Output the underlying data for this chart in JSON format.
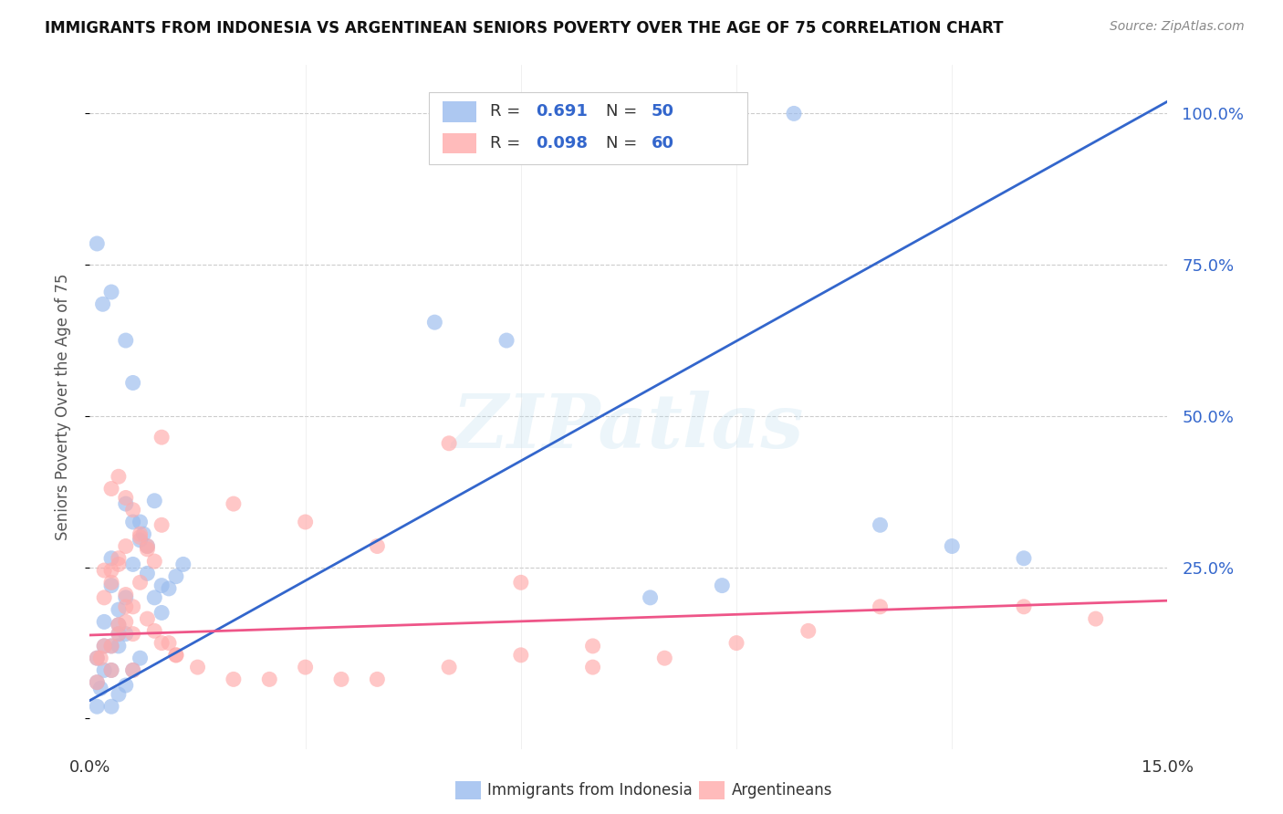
{
  "title": "IMMIGRANTS FROM INDONESIA VS ARGENTINEAN SENIORS POVERTY OVER THE AGE OF 75 CORRELATION CHART",
  "source": "Source: ZipAtlas.com",
  "ylabel": "Seniors Poverty Over the Age of 75",
  "right_ytick_labels": [
    "100.0%",
    "75.0%",
    "50.0%",
    "25.0%"
  ],
  "right_ytick_values": [
    1.0,
    0.75,
    0.5,
    0.25
  ],
  "xmin": 0.0,
  "xmax": 0.15,
  "ymin": -0.05,
  "ymax": 1.08,
  "blue_R": "0.691",
  "blue_N": "50",
  "pink_R": "0.098",
  "pink_N": "60",
  "blue_scatter_color": "#99BBEE",
  "pink_scatter_color": "#FFAAAA",
  "blue_line_color": "#3366CC",
  "pink_line_color": "#EE5588",
  "legend_label_blue": "Immigrants from Indonesia",
  "legend_label_pink": "Argentineans",
  "watermark": "ZIPatlas",
  "title_color": "#111111",
  "source_color": "#888888",
  "right_yaxis_color": "#3366CC",
  "blue_scatter_x": [
    0.001,
    0.002,
    0.003,
    0.001,
    0.004,
    0.005,
    0.003,
    0.006,
    0.0015,
    0.004,
    0.007,
    0.003,
    0.008,
    0.005,
    0.006,
    0.009,
    0.004,
    0.01,
    0.0018,
    0.003,
    0.001,
    0.005,
    0.006,
    0.007,
    0.0075,
    0.004,
    0.003,
    0.002,
    0.001,
    0.009,
    0.01,
    0.011,
    0.012,
    0.013,
    0.007,
    0.006,
    0.005,
    0.004,
    0.003,
    0.008,
    0.048,
    0.058,
    0.078,
    0.088,
    0.098,
    0.11,
    0.12,
    0.13,
    0.002,
    0.005
  ],
  "blue_scatter_y": [
    0.1,
    0.08,
    0.12,
    0.06,
    0.155,
    0.2,
    0.22,
    0.255,
    0.05,
    0.18,
    0.295,
    0.265,
    0.285,
    0.355,
    0.325,
    0.36,
    0.14,
    0.22,
    0.685,
    0.705,
    0.785,
    0.625,
    0.555,
    0.325,
    0.305,
    0.12,
    0.08,
    0.16,
    0.02,
    0.2,
    0.175,
    0.215,
    0.235,
    0.255,
    0.1,
    0.08,
    0.055,
    0.04,
    0.02,
    0.24,
    0.655,
    0.625,
    0.2,
    0.22,
    1.0,
    0.32,
    0.285,
    0.265,
    0.12,
    0.14
  ],
  "pink_scatter_x": [
    0.001,
    0.002,
    0.003,
    0.004,
    0.005,
    0.006,
    0.002,
    0.003,
    0.004,
    0.005,
    0.001,
    0.0015,
    0.003,
    0.004,
    0.005,
    0.006,
    0.007,
    0.008,
    0.009,
    0.01,
    0.02,
    0.03,
    0.04,
    0.05,
    0.06,
    0.07,
    0.08,
    0.09,
    0.1,
    0.11,
    0.003,
    0.004,
    0.005,
    0.006,
    0.007,
    0.008,
    0.01,
    0.012,
    0.015,
    0.02,
    0.025,
    0.03,
    0.035,
    0.04,
    0.05,
    0.06,
    0.07,
    0.13,
    0.14,
    0.002,
    0.003,
    0.004,
    0.005,
    0.006,
    0.007,
    0.008,
    0.009,
    0.01,
    0.011,
    0.012
  ],
  "pink_scatter_y": [
    0.1,
    0.12,
    0.08,
    0.155,
    0.185,
    0.14,
    0.2,
    0.225,
    0.255,
    0.285,
    0.06,
    0.1,
    0.12,
    0.14,
    0.16,
    0.08,
    0.3,
    0.28,
    0.26,
    0.32,
    0.355,
    0.325,
    0.285,
    0.455,
    0.225,
    0.12,
    0.1,
    0.125,
    0.145,
    0.185,
    0.38,
    0.4,
    0.365,
    0.345,
    0.305,
    0.285,
    0.125,
    0.105,
    0.085,
    0.065,
    0.065,
    0.085,
    0.065,
    0.065,
    0.085,
    0.105,
    0.085,
    0.185,
    0.165,
    0.245,
    0.245,
    0.265,
    0.205,
    0.185,
    0.225,
    0.165,
    0.145,
    0.465,
    0.125,
    0.105
  ]
}
